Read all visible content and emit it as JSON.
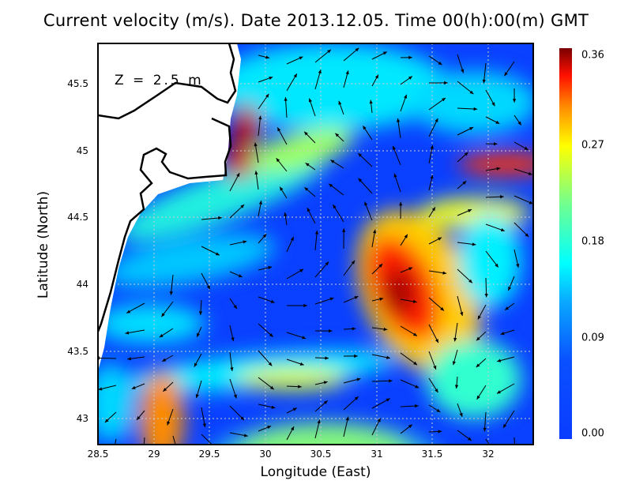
{
  "title": "Current velocity (m/s). Date 2013.12.05. Time 00(h):00(m) GMT",
  "depth_label": "Z  =  2.5  m",
  "chart_data": {
    "type": "heatmap",
    "title": "Current velocity (m/s). Date 2013.12.05. Time 00(h):00(m) GMT",
    "xlabel": "Longitude (East)",
    "ylabel": "Latitude (North)",
    "xlim": [
      28.5,
      32.4
    ],
    "ylim": [
      42.8,
      45.8
    ],
    "x_ticks": [
      "28.5",
      "29",
      "29.5",
      "30",
      "30.5",
      "31",
      "31.5",
      "32"
    ],
    "y_ticks": [
      "45.5",
      "45",
      "44.5",
      "44",
      "43.5",
      "43"
    ],
    "grid": true,
    "colorbar": {
      "min": 0.0,
      "max": 0.36,
      "ticks": [
        "0.36",
        "0.27",
        "0.18",
        "0.09",
        "0.00"
      ],
      "placement": "right"
    },
    "overlay": "velocity vectors (arrows)"
  },
  "colors": {
    "low": "#0a3cff",
    "mid": "#00ffff",
    "high": "#ffff00",
    "max": "#7a0000"
  }
}
